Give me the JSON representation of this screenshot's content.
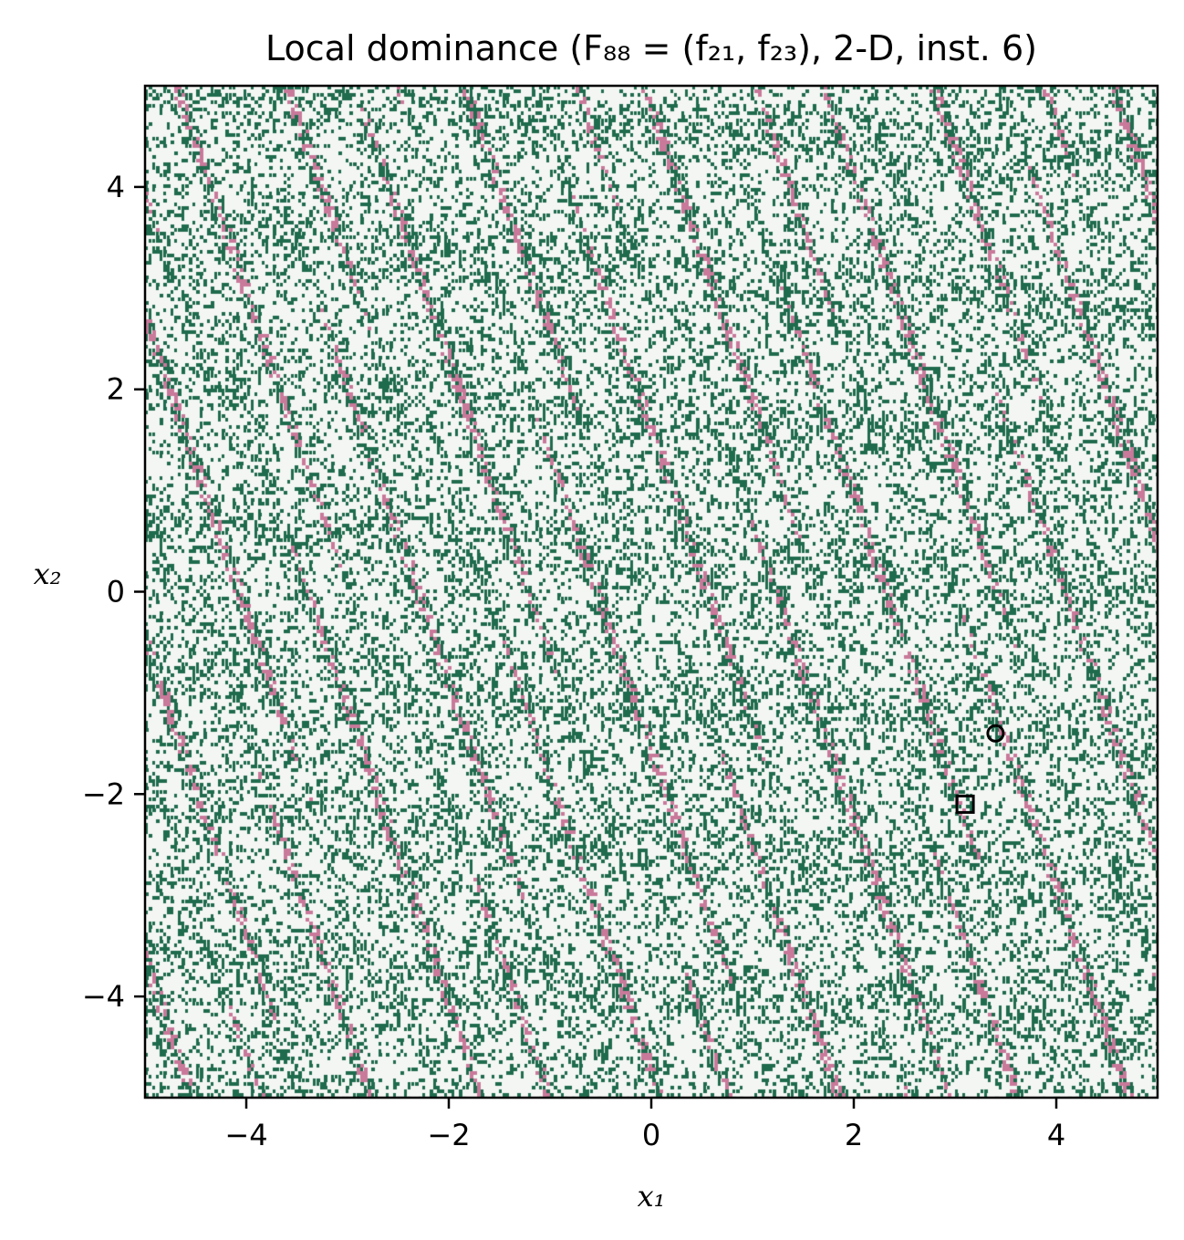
{
  "chart_data": {
    "type": "heatmap",
    "title": "Local dominance (F₈₈ = (f₂₁, f₂₃), 2-D, inst. 6)",
    "xlabel": "x₁",
    "ylabel": "x₂",
    "xlim": [
      -5,
      5
    ],
    "ylim": [
      -5,
      5
    ],
    "x_ticks": [
      -4,
      -2,
      0,
      2,
      4
    ],
    "y_ticks": [
      -4,
      -2,
      0,
      2,
      4
    ],
    "x_tick_labels": [
      "−4",
      "−2",
      "0",
      "2",
      "4"
    ],
    "y_tick_labels": [
      "−4",
      "−2",
      "0",
      "2",
      "4"
    ],
    "grid": false,
    "legend": "none",
    "colors": {
      "background": "#f3f6f3",
      "dominated": "#1f6b4e",
      "local_optimum_basin": "#c9799a"
    },
    "stripe_angle_description": "diagonal streaks from upper-left to lower-right",
    "markers": [
      {
        "shape": "circle",
        "x": 3.4,
        "y": -1.4
      },
      {
        "shape": "square",
        "x": 3.1,
        "y": -2.1
      }
    ]
  }
}
